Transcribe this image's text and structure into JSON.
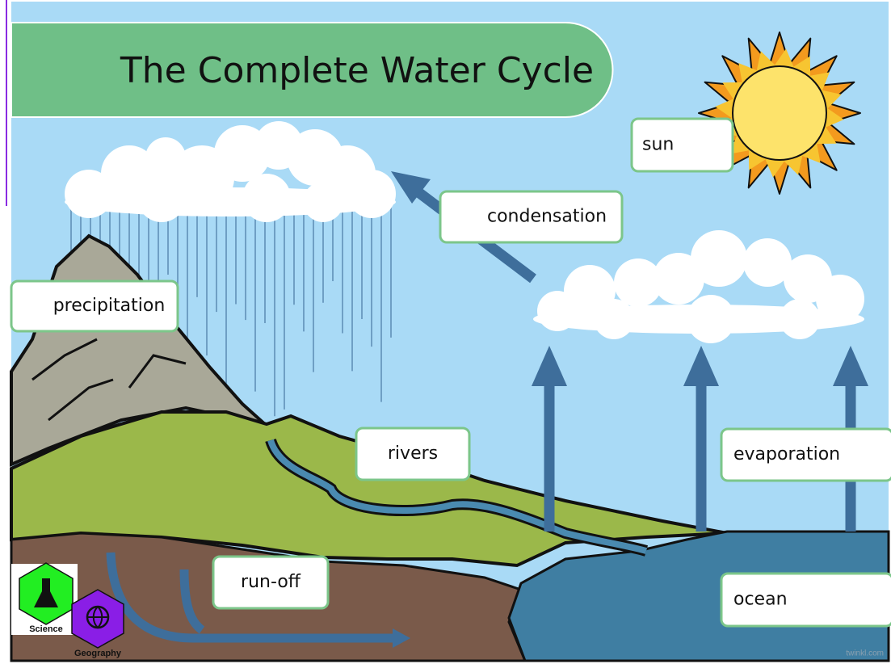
{
  "header": {
    "title": "The Complete Water Cycle"
  },
  "labels": [
    "sun",
    "condensation",
    "precipitation",
    "rivers",
    "evaporation",
    "run-off",
    "ocean"
  ],
  "badges": [
    "Science",
    "Geography"
  ],
  "watermark": "twinkl.com"
}
